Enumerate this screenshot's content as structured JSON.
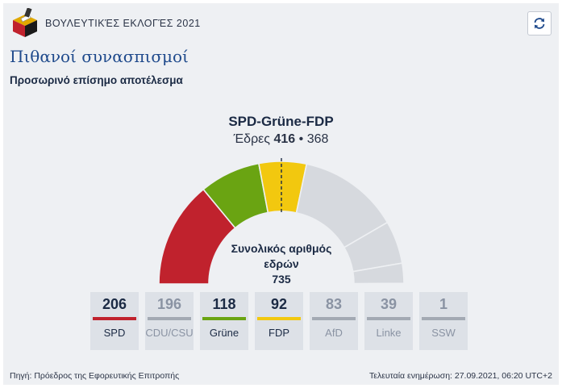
{
  "header": {
    "app_title": "ΒΟΥΛΕΥΤΙΚΈΣ ΕΚΛΟΓΈΣ 2021",
    "logo_icon": "ballot-box-icon",
    "refresh_icon": "refresh-icon"
  },
  "page": {
    "title": "Πιθανοί συνασπισμοί",
    "subtitle": "Προσωρινό επίσημο αποτέλεσμα"
  },
  "coalition": {
    "name": "SPD-Grüne-FDP",
    "seats_prefix": "Έδρες",
    "seats": "416",
    "separator": "•",
    "majority": "368"
  },
  "chart_data": {
    "type": "half-donut",
    "total_label": "Συνολικός αριθμός εδρών",
    "total_seats": 735,
    "majority": 368,
    "segments": [
      {
        "name": "SPD",
        "value": 206,
        "color": "#c0222d",
        "in_coalition": true
      },
      {
        "name": "Grüne",
        "value": 118,
        "color": "#6aa412",
        "in_coalition": true
      },
      {
        "name": "FDP",
        "value": 92,
        "color": "#f2c80f",
        "in_coalition": true
      },
      {
        "name": "CDU/CSU",
        "value": 196,
        "color": "#d6d9de",
        "in_coalition": false
      },
      {
        "name": "AfD",
        "value": 83,
        "color": "#d6d9de",
        "in_coalition": false
      },
      {
        "name": "Linke",
        "value": 39,
        "color": "#d6d9de",
        "in_coalition": false
      },
      {
        "name": "SSW",
        "value": 1,
        "color": "#d6d9de",
        "in_coalition": false
      }
    ]
  },
  "parties": [
    {
      "name": "SPD",
      "seats": "206",
      "color": "#c0222d",
      "active": true
    },
    {
      "name": "CDU/CSU",
      "seats": "196",
      "color": "#a3a9b3",
      "active": false
    },
    {
      "name": "Grüne",
      "seats": "118",
      "color": "#6aa412",
      "active": true
    },
    {
      "name": "FDP",
      "seats": "92",
      "color": "#f2c80f",
      "active": true
    },
    {
      "name": "AfD",
      "seats": "83",
      "color": "#a3a9b3",
      "active": false
    },
    {
      "name": "Linke",
      "seats": "39",
      "color": "#a3a9b3",
      "active": false
    },
    {
      "name": "SSW",
      "seats": "1",
      "color": "#a3a9b3",
      "active": false
    }
  ],
  "footer": {
    "source": "Πηγή: Πρόεδρος της Εφορευτικής Επιτροπής",
    "updated": "Τελευταία ενημέρωση: 27.09.2021, 06:20 UTC+2"
  }
}
